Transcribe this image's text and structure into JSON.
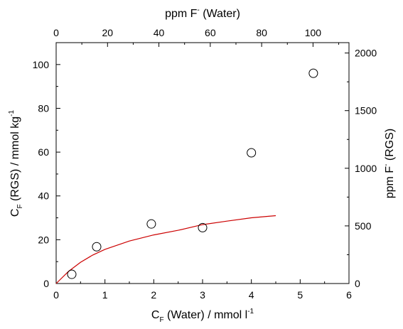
{
  "chart_data": {
    "type": "scatter",
    "colors": {
      "fit_line": "#cc0000",
      "markers": "#000000",
      "axes": "#000000"
    },
    "axes": {
      "bottom": {
        "label_main": "C",
        "label_sub": "F",
        "label_rest": " (Water) / mmol l",
        "label_sup": "-1",
        "range": [
          0,
          6
        ],
        "ticks": [
          "0",
          "1",
          "2",
          "3",
          "4",
          "5",
          "6"
        ]
      },
      "left": {
        "label_main": "C",
        "label_sub": "F",
        "label_rest": " (RGS) / mmol kg",
        "label_sup": "-1",
        "range": [
          0,
          110
        ],
        "ticks": [
          "0",
          "20",
          "40",
          "60",
          "80",
          "100"
        ]
      },
      "top": {
        "label_main": "ppm F",
        "label_sup": "-",
        "label_rest": " (Water)",
        "range": [
          0,
          114
        ],
        "ticks": [
          "0",
          "20",
          "40",
          "60",
          "80",
          "100"
        ]
      },
      "right": {
        "label_main": "ppm F",
        "label_sup": "-",
        "label_rest": " (RGS)",
        "range": [
          0,
          2090
        ],
        "ticks": [
          "0",
          "500",
          "1000",
          "1500",
          "2000"
        ]
      }
    },
    "series": [
      {
        "kind": "scatter",
        "marker": "open-circle",
        "x": [
          0.32,
          0.83,
          1.95,
          3.0,
          4.0,
          5.27
        ],
        "y": [
          4.2,
          16.8,
          27.2,
          25.5,
          59.7,
          96.0
        ]
      },
      {
        "kind": "line",
        "x": [
          0,
          0.25,
          0.5,
          0.75,
          1.0,
          1.5,
          2.0,
          2.5,
          3.0,
          3.5,
          4.0,
          4.5
        ],
        "y": [
          0,
          5.5,
          9.7,
          13.0,
          15.6,
          19.4,
          22.2,
          24.3,
          26.9,
          28.5,
          30.0,
          31.0
        ]
      }
    ],
    "grid": false
  }
}
